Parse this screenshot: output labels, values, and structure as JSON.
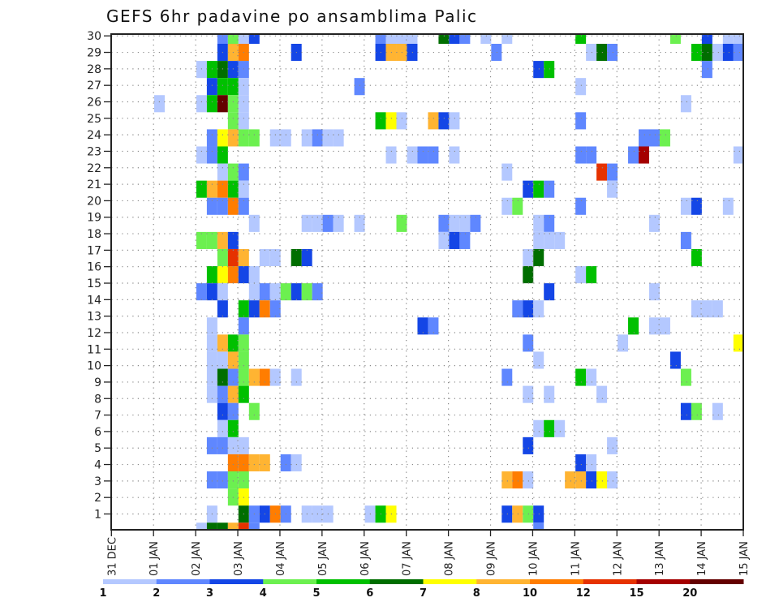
{
  "chart_data": {
    "type": "heatmap",
    "title": "GEFS 6hr padavine po ansamblima Palic",
    "xlabel": "",
    "ylabel": "",
    "time_steps": 60,
    "step_hours": 6,
    "x_tick_labels": [
      "31 DEC",
      "01 JAN",
      "02 JAN",
      "03 JAN",
      "04 JAN",
      "05 JAN",
      "06 JAN",
      "07 JAN",
      "08 JAN",
      "09 JAN",
      "10 JAN",
      "11 JAN",
      "12 JAN",
      "13 JAN",
      "14 JAN",
      "15 JAN"
    ],
    "y_tick_labels": [
      "1",
      "2",
      "3",
      "4",
      "5",
      "6",
      "7",
      "8",
      "9",
      "10",
      "11",
      "12",
      "13",
      "14",
      "15",
      "16",
      "17",
      "18",
      "19",
      "20",
      "21",
      "22",
      "23",
      "24",
      "25",
      "26",
      "27",
      "28",
      "29",
      "30"
    ],
    "grid": "dotted",
    "legend": {
      "placement": "bottom",
      "levels": [
        "1",
        "2",
        "3",
        "4",
        "5",
        "6",
        "7",
        "8",
        "10",
        "12",
        "15",
        "20"
      ],
      "colors": [
        "#b4c8ff",
        "#5f87ff",
        "#1446e6",
        "#6cf050",
        "#00c000",
        "#006e00",
        "#ffff00",
        "#ffb432",
        "#ff7d00",
        "#e63200",
        "#a50000",
        "#640000"
      ]
    },
    "rows_top_to_bottom_note": "each row: list of [time_step_index, level_index(1-12)]",
    "rows": [
      [
        [
          10,
          2
        ],
        [
          11,
          4
        ],
        [
          12,
          1
        ],
        [
          13,
          3
        ],
        [
          25,
          2
        ],
        [
          26,
          1
        ],
        [
          27,
          1
        ],
        [
          28,
          1
        ],
        [
          31,
          6
        ],
        [
          32,
          3
        ],
        [
          33,
          2
        ],
        [
          35,
          1
        ],
        [
          37,
          1
        ],
        [
          44,
          5
        ],
        [
          53,
          4
        ],
        [
          56,
          3
        ],
        [
          58,
          1
        ],
        [
          59,
          1
        ]
      ],
      [
        [
          10,
          3
        ],
        [
          11,
          8
        ],
        [
          12,
          9
        ],
        [
          17,
          3
        ],
        [
          25,
          3
        ],
        [
          26,
          8
        ],
        [
          27,
          8
        ],
        [
          28,
          3
        ],
        [
          36,
          2
        ],
        [
          45,
          1
        ],
        [
          46,
          6
        ],
        [
          47,
          2
        ],
        [
          55,
          5
        ],
        [
          56,
          6
        ],
        [
          57,
          1
        ],
        [
          58,
          3
        ],
        [
          59,
          2
        ]
      ],
      [
        [
          8,
          1
        ],
        [
          9,
          5
        ],
        [
          10,
          6
        ],
        [
          11,
          3
        ],
        [
          12,
          2
        ],
        [
          40,
          3
        ],
        [
          41,
          5
        ],
        [
          56,
          2
        ]
      ],
      [
        [
          9,
          3
        ],
        [
          10,
          5
        ],
        [
          11,
          5
        ],
        [
          12,
          1
        ],
        [
          23,
          2
        ],
        [
          44,
          1
        ]
      ],
      [
        [
          4,
          1
        ],
        [
          8,
          1
        ],
        [
          9,
          5
        ],
        [
          10,
          12
        ],
        [
          11,
          4
        ],
        [
          12,
          1
        ],
        [
          54,
          1
        ]
      ],
      [
        [
          11,
          4
        ],
        [
          12,
          1
        ],
        [
          25,
          5
        ],
        [
          26,
          7
        ],
        [
          27,
          1
        ],
        [
          30,
          8
        ],
        [
          31,
          3
        ],
        [
          32,
          1
        ],
        [
          44,
          2
        ]
      ],
      [
        [
          9,
          2
        ],
        [
          10,
          7
        ],
        [
          11,
          8
        ],
        [
          12,
          4
        ],
        [
          13,
          4
        ],
        [
          15,
          1
        ],
        [
          16,
          1
        ],
        [
          18,
          1
        ],
        [
          19,
          2
        ],
        [
          20,
          1
        ],
        [
          21,
          1
        ],
        [
          50,
          2
        ],
        [
          51,
          2
        ],
        [
          52,
          4
        ]
      ],
      [
        [
          8,
          1
        ],
        [
          9,
          2
        ],
        [
          10,
          5
        ],
        [
          26,
          1
        ],
        [
          28,
          1
        ],
        [
          29,
          2
        ],
        [
          30,
          2
        ],
        [
          32,
          1
        ],
        [
          44,
          2
        ],
        [
          45,
          2
        ],
        [
          49,
          2
        ],
        [
          50,
          11
        ],
        [
          59,
          1
        ]
      ],
      [
        [
          10,
          1
        ],
        [
          11,
          4
        ],
        [
          12,
          2
        ],
        [
          37,
          1
        ],
        [
          46,
          10
        ],
        [
          47,
          2
        ]
      ],
      [
        [
          8,
          5
        ],
        [
          9,
          8
        ],
        [
          10,
          9
        ],
        [
          11,
          5
        ],
        [
          12,
          1
        ],
        [
          39,
          3
        ],
        [
          40,
          5
        ],
        [
          41,
          2
        ],
        [
          47,
          1
        ]
      ],
      [
        [
          9,
          2
        ],
        [
          10,
          2
        ],
        [
          11,
          9
        ],
        [
          12,
          2
        ],
        [
          37,
          1
        ],
        [
          38,
          4
        ],
        [
          44,
          2
        ],
        [
          54,
          1
        ],
        [
          55,
          3
        ],
        [
          58,
          1
        ]
      ],
      [
        [
          13,
          1
        ],
        [
          18,
          1
        ],
        [
          19,
          1
        ],
        [
          20,
          2
        ],
        [
          21,
          1
        ],
        [
          23,
          1
        ],
        [
          27,
          4
        ],
        [
          31,
          2
        ],
        [
          32,
          1
        ],
        [
          33,
          1
        ],
        [
          34,
          2
        ],
        [
          40,
          1
        ],
        [
          41,
          2
        ],
        [
          51,
          1
        ]
      ],
      [
        [
          8,
          4
        ],
        [
          9,
          4
        ],
        [
          10,
          8
        ],
        [
          11,
          3
        ],
        [
          31,
          1
        ],
        [
          32,
          3
        ],
        [
          33,
          2
        ],
        [
          40,
          1
        ],
        [
          41,
          1
        ],
        [
          42,
          1
        ],
        [
          54,
          2
        ]
      ],
      [
        [
          10,
          4
        ],
        [
          11,
          10
        ],
        [
          12,
          8
        ],
        [
          14,
          1
        ],
        [
          15,
          1
        ],
        [
          17,
          6
        ],
        [
          18,
          3
        ],
        [
          39,
          1
        ],
        [
          40,
          6
        ],
        [
          55,
          5
        ]
      ],
      [
        [
          9,
          5
        ],
        [
          10,
          7
        ],
        [
          11,
          9
        ],
        [
          12,
          3
        ],
        [
          13,
          1
        ],
        [
          39,
          6
        ],
        [
          44,
          1
        ],
        [
          45,
          5
        ]
      ],
      [
        [
          8,
          2
        ],
        [
          9,
          3
        ],
        [
          10,
          1
        ],
        [
          13,
          1
        ],
        [
          14,
          2
        ],
        [
          15,
          1
        ],
        [
          16,
          4
        ],
        [
          17,
          3
        ],
        [
          18,
          4
        ],
        [
          19,
          2
        ],
        [
          41,
          3
        ],
        [
          51,
          1
        ]
      ],
      [
        [
          10,
          3
        ],
        [
          12,
          5
        ],
        [
          13,
          3
        ],
        [
          14,
          9
        ],
        [
          15,
          2
        ],
        [
          38,
          2
        ],
        [
          39,
          3
        ],
        [
          40,
          1
        ],
        [
          55,
          1
        ],
        [
          56,
          1
        ],
        [
          57,
          1
        ]
      ],
      [
        [
          9,
          1
        ],
        [
          12,
          2
        ],
        [
          29,
          3
        ],
        [
          30,
          2
        ],
        [
          49,
          5
        ],
        [
          51,
          1
        ],
        [
          52,
          1
        ]
      ],
      [
        [
          9,
          1
        ],
        [
          10,
          8
        ],
        [
          11,
          5
        ],
        [
          12,
          4
        ],
        [
          39,
          2
        ],
        [
          48,
          1
        ],
        [
          59,
          7
        ]
      ],
      [
        [
          9,
          1
        ],
        [
          10,
          1
        ],
        [
          11,
          8
        ],
        [
          12,
          4
        ],
        [
          40,
          1
        ],
        [
          53,
          3
        ]
      ],
      [
        [
          9,
          1
        ],
        [
          10,
          6
        ],
        [
          11,
          2
        ],
        [
          12,
          4
        ],
        [
          13,
          8
        ],
        [
          14,
          9
        ],
        [
          15,
          1
        ],
        [
          17,
          1
        ],
        [
          37,
          2
        ],
        [
          44,
          5
        ],
        [
          45,
          1
        ],
        [
          54,
          4
        ]
      ],
      [
        [
          9,
          1
        ],
        [
          10,
          2
        ],
        [
          11,
          8
        ],
        [
          12,
          5
        ],
        [
          39,
          1
        ],
        [
          41,
          1
        ],
        [
          46,
          1
        ]
      ],
      [
        [
          10,
          3
        ],
        [
          11,
          2
        ],
        [
          13,
          4
        ],
        [
          54,
          3
        ],
        [
          55,
          4
        ],
        [
          57,
          1
        ]
      ],
      [
        [
          10,
          1
        ],
        [
          11,
          5
        ],
        [
          40,
          1
        ],
        [
          41,
          5
        ],
        [
          42,
          1
        ]
      ],
      [
        [
          9,
          2
        ],
        [
          10,
          2
        ],
        [
          11,
          1
        ],
        [
          12,
          1
        ],
        [
          39,
          3
        ],
        [
          47,
          1
        ]
      ],
      [
        [
          11,
          9
        ],
        [
          12,
          9
        ],
        [
          13,
          8
        ],
        [
          14,
          8
        ],
        [
          16,
          2
        ],
        [
          17,
          1
        ],
        [
          44,
          3
        ],
        [
          45,
          1
        ]
      ],
      [
        [
          9,
          2
        ],
        [
          10,
          2
        ],
        [
          11,
          4
        ],
        [
          12,
          4
        ],
        [
          37,
          8
        ],
        [
          38,
          9
        ],
        [
          39,
          1
        ],
        [
          43,
          8
        ],
        [
          44,
          8
        ],
        [
          45,
          3
        ],
        [
          46,
          7
        ],
        [
          47,
          1
        ]
      ],
      [
        [
          11,
          4
        ],
        [
          12,
          7
        ]
      ],
      [
        [
          9,
          1
        ],
        [
          12,
          6
        ],
        [
          13,
          2
        ],
        [
          14,
          3
        ],
        [
          15,
          9
        ],
        [
          16,
          2
        ],
        [
          18,
          1
        ],
        [
          19,
          1
        ],
        [
          20,
          1
        ],
        [
          24,
          1
        ],
        [
          25,
          5
        ],
        [
          26,
          7
        ],
        [
          37,
          3
        ],
        [
          38,
          8
        ],
        [
          39,
          4
        ],
        [
          40,
          3
        ]
      ],
      [
        [
          8,
          1
        ],
        [
          9,
          6
        ],
        [
          10,
          6
        ],
        [
          11,
          8
        ],
        [
          12,
          10
        ],
        [
          13,
          2
        ],
        [
          40,
          2
        ]
      ]
    ]
  }
}
